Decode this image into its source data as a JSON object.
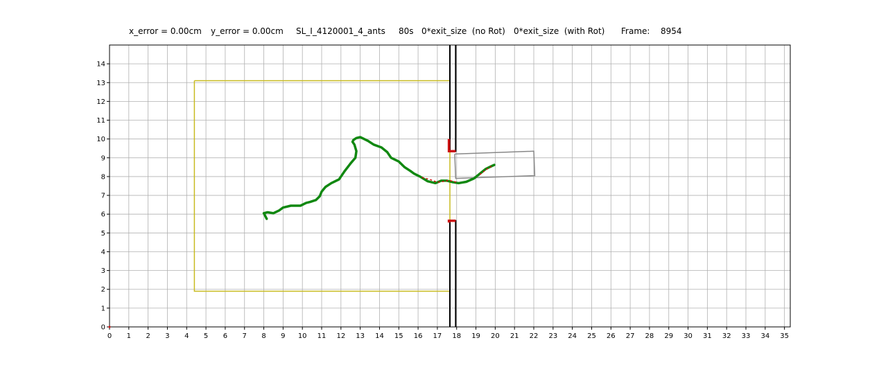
{
  "header": {
    "x_error": "x_error = 0.00cm",
    "y_error": "y_error = 0.00cm",
    "run_name": "SL_I_4120001_4_ants",
    "time": "80s",
    "exit_no_rot": "0*exit_size  (no Rot)",
    "exit_with_rot": "0*exit_size  (with Rot)",
    "frame_label": "Frame:",
    "frame_value": "8954"
  },
  "chart_data": {
    "type": "line",
    "title": "x_error = 0.00cm   y_error = 0.00cm     SL_I_4120001_4_ants     80s   0*exit_size  (no Rot)   0*exit_size  (with Rot)      Frame:    8954",
    "xlabel": "",
    "ylabel": "",
    "xlim": [
      0,
      35.3
    ],
    "ylim": [
      0,
      15
    ],
    "grid": true,
    "xticks": [
      0,
      1,
      2,
      3,
      4,
      5,
      6,
      7,
      8,
      9,
      10,
      11,
      12,
      13,
      14,
      15,
      16,
      17,
      18,
      19,
      20,
      21,
      22,
      23,
      24,
      25,
      26,
      27,
      28,
      29,
      30,
      31,
      32,
      33,
      34,
      35
    ],
    "yticks": [
      0,
      1,
      2,
      3,
      4,
      5,
      6,
      7,
      8,
      9,
      10,
      11,
      12,
      13,
      14
    ],
    "colors": {
      "trajectory": "#118811",
      "trajectory_highlight": "#cc1111",
      "arena": "#c8bb20",
      "load": "#888888",
      "wall": "#000000",
      "grid": "#b0b0b0"
    },
    "arena": {
      "x": [
        4.4,
        17.65,
        17.65,
        4.4,
        4.4
      ],
      "y": [
        13.1,
        13.1,
        1.9,
        1.9,
        13.1
      ]
    },
    "walls": [
      {
        "x": [
          17.65,
          17.65,
          17.95,
          17.95
        ],
        "y": [
          15,
          9.35,
          9.35,
          15
        ]
      },
      {
        "x": [
          17.65,
          17.65,
          17.95,
          17.95
        ],
        "y": [
          0,
          5.65,
          5.65,
          0
        ]
      }
    ],
    "load_box": {
      "x": [
        17.9,
        22.0,
        22.05,
        17.95,
        17.9
      ],
      "y": [
        9.2,
        9.35,
        8.05,
        7.9,
        9.2
      ]
    },
    "corner_markers": [
      {
        "x": [
          17.6,
          17.6,
          17.95
        ],
        "y": [
          10.0,
          9.35,
          9.35
        ]
      },
      {
        "x": [
          17.6,
          17.6,
          17.95
        ],
        "y": [
          5.55,
          5.65,
          5.65
        ]
      }
    ],
    "series": [
      {
        "x": [
          8.15,
          8.0,
          8.2,
          8.5,
          8.8,
          9.0,
          9.4,
          9.9,
          10.2,
          10.4,
          10.7,
          10.9,
          11.0,
          11.2,
          11.5,
          11.9,
          12.0,
          12.2,
          12.5,
          12.75,
          12.8,
          12.7,
          12.6,
          12.65,
          12.8,
          13.0,
          13.4,
          13.7,
          14.1,
          14.4,
          14.6,
          15.0,
          15.3,
          15.6,
          15.8,
          16.1,
          16.5,
          16.9,
          17.2,
          17.5,
          17.8,
          18.1,
          18.5,
          18.9,
          19.2,
          19.5,
          19.8,
          19.95
        ],
        "y": [
          5.75,
          6.05,
          6.1,
          6.05,
          6.2,
          6.35,
          6.45,
          6.45,
          6.6,
          6.65,
          6.75,
          6.95,
          7.2,
          7.45,
          7.65,
          7.85,
          8.0,
          8.3,
          8.7,
          9.0,
          9.35,
          9.7,
          9.85,
          9.95,
          10.05,
          10.1,
          9.9,
          9.7,
          9.55,
          9.3,
          9.0,
          8.8,
          8.5,
          8.3,
          8.15,
          8.0,
          7.75,
          7.65,
          7.78,
          7.78,
          7.7,
          7.65,
          7.72,
          7.9,
          8.15,
          8.4,
          8.55,
          8.62
        ]
      }
    ],
    "highlights": [
      {
        "x": [
          16.2,
          16.6,
          17.0,
          17.4,
          17.6,
          18.0
        ],
        "y": [
          7.95,
          7.85,
          7.7,
          7.75,
          7.8,
          7.7
        ]
      },
      {
        "x": [
          19.2,
          19.5,
          19.8
        ],
        "y": [
          8.1,
          8.35,
          8.55
        ]
      }
    ]
  }
}
